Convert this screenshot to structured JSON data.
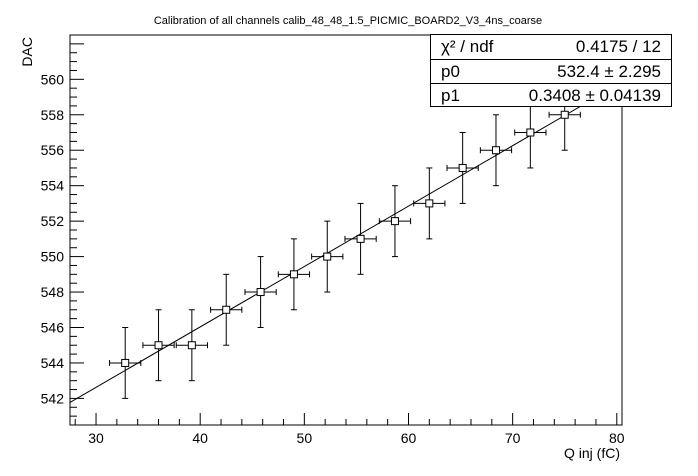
{
  "chart_data": {
    "type": "scatter",
    "title": "Calibration of all channels calib_48_48_1.5_PICMIC_BOARD2_V3_4ns_coarse",
    "xlabel": "Q inj (fC)",
    "ylabel": "DAC",
    "xlim": [
      27.5,
      80.5
    ],
    "ylim": [
      540.5,
      562.5
    ],
    "x_ticks": [
      30,
      40,
      50,
      60,
      70,
      80
    ],
    "y_ticks": [
      542,
      544,
      546,
      548,
      550,
      552,
      554,
      556,
      558,
      560
    ],
    "x_tick_labels": [
      "30",
      "40",
      "50",
      "60",
      "70",
      "80"
    ],
    "y_tick_labels": [
      "542",
      "544",
      "546",
      "548",
      "550",
      "552",
      "554",
      "556",
      "558",
      "560"
    ],
    "points": {
      "x": [
        32.8,
        36.0,
        39.2,
        42.5,
        45.8,
        49.0,
        52.2,
        55.4,
        58.7,
        62.0,
        65.2,
        68.4,
        71.7,
        75.0
      ],
      "y": [
        544,
        545,
        545,
        547,
        548,
        549,
        550,
        551,
        552,
        553,
        555,
        556,
        557,
        558
      ],
      "x_err": [
        1.5,
        1.5,
        1.5,
        1.5,
        1.5,
        1.5,
        1.5,
        1.5,
        1.5,
        1.5,
        1.5,
        1.5,
        1.5,
        1.5
      ],
      "y_err": [
        2,
        2,
        2,
        2,
        2,
        2,
        2,
        2,
        2,
        2,
        2,
        2,
        2,
        2
      ]
    },
    "fit": {
      "type": "linear",
      "p0": 532.4,
      "p1": 0.3408
    },
    "grid": false,
    "legend": "none"
  },
  "stats": {
    "rows": [
      {
        "key": "χ² / ndf",
        "value": "0.4175 / 12"
      },
      {
        "key": "p0",
        "value": "532.4 ± 2.295"
      },
      {
        "key": "p1",
        "value": "0.3408 ± 0.04139"
      }
    ]
  }
}
